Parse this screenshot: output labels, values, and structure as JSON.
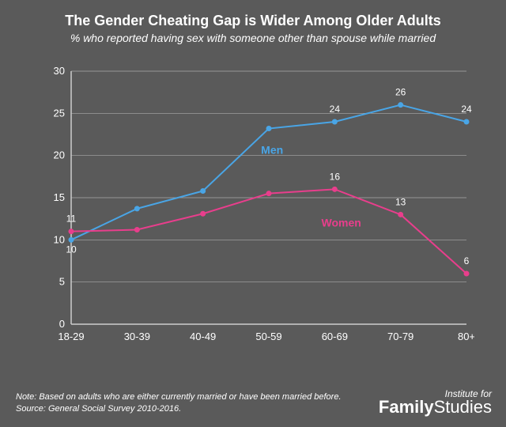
{
  "chart": {
    "type": "line",
    "title": "The Gender Cheating Gap is Wider Among Older Adults",
    "title_fontsize": 18,
    "subtitle": "% who reported having sex with someone other than spouse while married",
    "subtitle_fontsize": 14,
    "background_color": "#5a5a5a",
    "text_color": "#ffffff",
    "grid_color": "#cccccc",
    "axis_color": "#cccccc",
    "axis_fontsize": 13,
    "tick_fontsize": 13,
    "label_fontsize": 14,
    "datalabel_fontsize": 12,
    "line_width": 2,
    "marker_radius": 3.5,
    "xlabels": [
      "18-29",
      "30-39",
      "40-49",
      "50-59",
      "60-69",
      "70-79",
      "80+"
    ],
    "ylim": [
      0,
      30
    ],
    "ytick_step": 5,
    "series": [
      {
        "name": "Men",
        "color": "#49a5e6",
        "values": [
          10,
          13.7,
          15.8,
          23.2,
          24,
          26,
          24
        ],
        "shown_labels": {
          "0": "10",
          "4": "24",
          "5": "26",
          "6": "24"
        },
        "label_dy": -12,
        "legend_x": 3.05,
        "legend_y": 20.2
      },
      {
        "name": "Women",
        "color": "#e83e8c",
        "values": [
          11,
          11.2,
          13.1,
          15.5,
          16,
          13,
          6
        ],
        "shown_labels": {
          "0": "11",
          "4": "16",
          "5": "13",
          "6": "6"
        },
        "label_dy": -12,
        "legend_x": 4.1,
        "legend_y": 11.6
      }
    ]
  },
  "footnote": {
    "line1": "Note: Based on adults who are either currently married or have been married before.",
    "line2": "Source: General Social Survey 2010-2016.",
    "fontsize": 11
  },
  "logo": {
    "line1": "Institute for",
    "line1_fontsize": 12,
    "line2_a": "Family",
    "line2_b": "Studies",
    "line2_fontsize": 22
  }
}
